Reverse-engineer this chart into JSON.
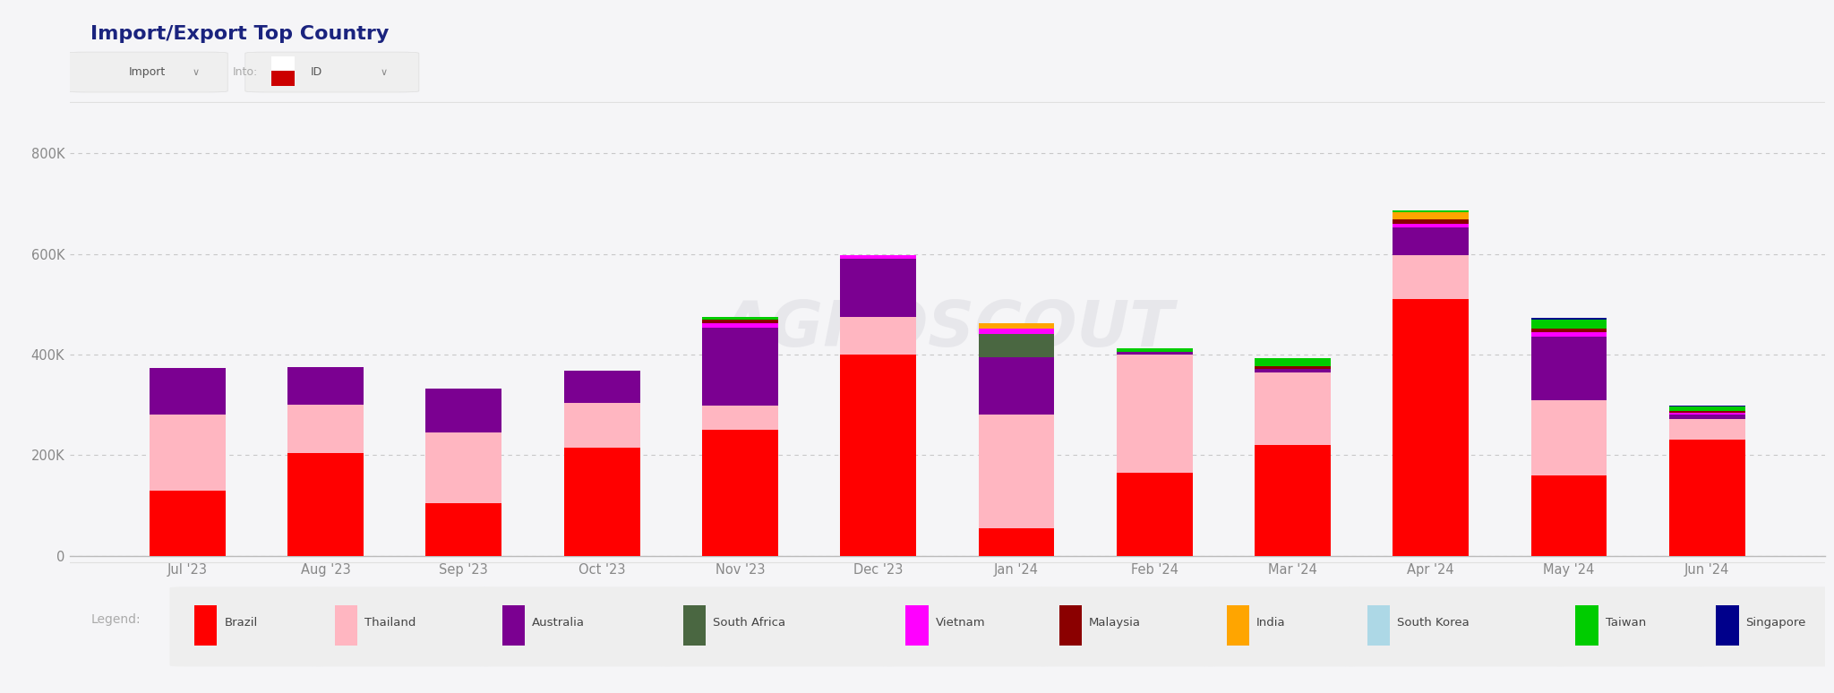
{
  "title": "Import/Export Top Country",
  "months": [
    "Jul '23",
    "Aug '23",
    "Sep '23",
    "Oct '23",
    "Nov '23",
    "Dec '23",
    "Jan '24",
    "Feb '24",
    "Mar '24",
    "Apr '24",
    "May '24",
    "Jun '24"
  ],
  "series": {
    "Brazil": [
      130000,
      205000,
      105000,
      215000,
      250000,
      400000,
      55000,
      165000,
      220000,
      510000,
      160000,
      230000
    ],
    "Thailand": [
      150000,
      95000,
      140000,
      88000,
      48000,
      75000,
      225000,
      235000,
      145000,
      88000,
      150000,
      42000
    ],
    "Australia": [
      93000,
      75000,
      88000,
      65000,
      155000,
      115000,
      115000,
      5000,
      6000,
      55000,
      125000,
      8000
    ],
    "South Africa": [
      0,
      0,
      0,
      0,
      0,
      0,
      45000,
      0,
      0,
      0,
      0,
      0
    ],
    "Vietnam": [
      0,
      0,
      0,
      0,
      9000,
      8000,
      11000,
      0,
      0,
      7000,
      9000,
      4000
    ],
    "Malaysia": [
      0,
      0,
      0,
      0,
      7000,
      0,
      0,
      0,
      5000,
      9000,
      7000,
      4000
    ],
    "India": [
      0,
      0,
      0,
      0,
      0,
      0,
      11000,
      0,
      0,
      13000,
      0,
      0
    ],
    "South Korea": [
      0,
      0,
      0,
      0,
      0,
      0,
      0,
      0,
      0,
      0,
      0,
      0
    ],
    "Taiwan": [
      0,
      0,
      0,
      0,
      5000,
      0,
      0,
      8000,
      16000,
      5000,
      18000,
      8000
    ],
    "Singapore": [
      0,
      0,
      0,
      0,
      0,
      0,
      0,
      0,
      0,
      0,
      4000,
      3000
    ]
  },
  "colors": {
    "Brazil": "#ff0000",
    "Thailand": "#ffb6c1",
    "Australia": "#7b0091",
    "South Africa": "#4a6741",
    "Vietnam": "#ff00ff",
    "Malaysia": "#8b0000",
    "India": "#ffa500",
    "South Korea": "#add8e6",
    "Taiwan": "#00cc00",
    "Singapore": "#00008b"
  },
  "ylim": [
    0,
    900000
  ],
  "yticks": [
    0,
    200000,
    400000,
    600000,
    800000
  ],
  "ytick_labels": [
    "0",
    "200K",
    "400K",
    "600K",
    "800K"
  ],
  "page_bg": "#f5f5f7",
  "header_bg": "#ffffff",
  "chart_bg": "#f5f5f7",
  "legend_bg": "#ffffff",
  "grid_color": "#c8c8c8",
  "bar_width": 0.55,
  "title_color": "#1a237e",
  "title_fontsize": 16,
  "axis_fontsize": 10.5,
  "legend_fontsize": 10,
  "series_order": [
    "Brazil",
    "Thailand",
    "Australia",
    "South Africa",
    "Vietnam",
    "Malaysia",
    "India",
    "South Korea",
    "Taiwan",
    "Singapore"
  ]
}
